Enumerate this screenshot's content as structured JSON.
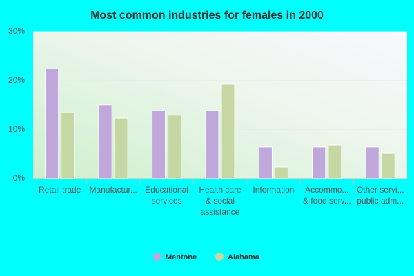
{
  "chart_data": {
    "type": "bar",
    "title": "Most common industries for females in 2000",
    "categories": [
      "Retail trade",
      "Manufactur...",
      "Educational\nservices",
      "Health care\n& social\nassistance",
      "Information",
      "Accommo...\n& food serv...",
      "Other servi...\npublic adm..."
    ],
    "series": [
      {
        "name": "Mentone",
        "color": "#c0a8dc",
        "values": [
          22.5,
          15.1,
          13.9,
          13.9,
          6.5,
          6.5,
          6.5
        ]
      },
      {
        "name": "Alabama",
        "color": "#c5d8a4",
        "values": [
          13.5,
          12.4,
          13.0,
          19.3,
          2.4,
          6.9,
          5.2
        ]
      }
    ],
    "ylim": [
      0,
      30
    ],
    "yticks": [
      {
        "value": 0,
        "label": "0%"
      },
      {
        "value": 10,
        "label": "10%"
      },
      {
        "value": 20,
        "label": "20%"
      },
      {
        "value": 30,
        "label": "30%"
      }
    ],
    "grid": true
  }
}
